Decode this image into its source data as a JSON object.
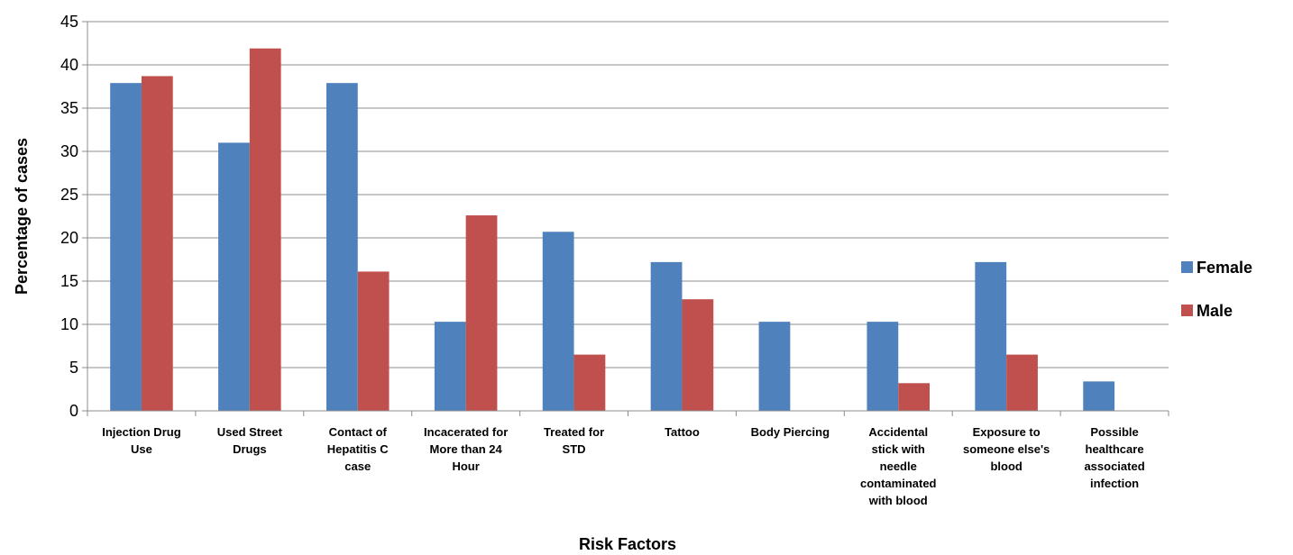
{
  "chart_data": {
    "type": "bar",
    "title": "",
    "xlabel": "Risk Factors",
    "ylabel": "Percentage of cases",
    "ylim": [
      0,
      45
    ],
    "yticks": [
      0,
      5,
      10,
      15,
      20,
      25,
      30,
      35,
      40,
      45
    ],
    "grid": true,
    "legend_position": "right",
    "categories": [
      [
        "Injection Drug",
        "Use"
      ],
      [
        "Used Street",
        "Drugs"
      ],
      [
        "Contact of",
        "Hepatitis C",
        "case"
      ],
      [
        "Incacerated for",
        "More than 24",
        "Hour"
      ],
      [
        "Treated for",
        "STD"
      ],
      [
        "Tattoo"
      ],
      [
        "Body Piercing"
      ],
      [
        "Accidental",
        "stick with",
        "needle",
        "contaminated",
        "with blood"
      ],
      [
        "Exposure to",
        "someone else's",
        "blood"
      ],
      [
        "Possible",
        "healthcare",
        "associated",
        "infection"
      ]
    ],
    "series": [
      {
        "name": "Female",
        "color": "#4F81BD",
        "values": [
          37.9,
          31.0,
          37.9,
          10.3,
          20.7,
          17.2,
          10.3,
          10.3,
          17.2,
          3.4
        ]
      },
      {
        "name": "Male",
        "color": "#C0504D",
        "values": [
          38.7,
          41.9,
          16.1,
          22.6,
          6.5,
          12.9,
          0,
          3.2,
          6.5,
          0
        ]
      }
    ]
  }
}
